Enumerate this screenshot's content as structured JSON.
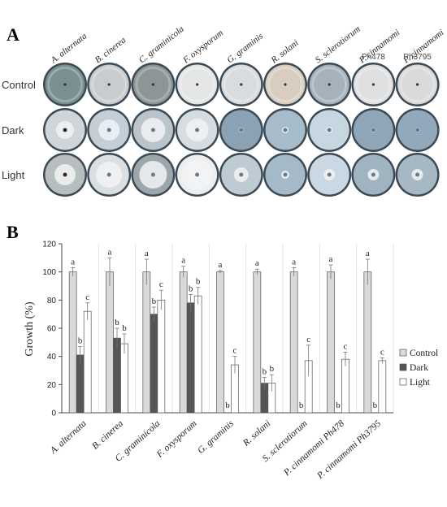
{
  "panel_a": {
    "letter": "A",
    "species": [
      "A. alternata",
      "B. cinerea",
      "C. graminicola",
      "F. oxysporum",
      "G. graminis",
      "R. solani",
      "S. sclerotiorum",
      "P. cinnamomi",
      "P. cinnamomi"
    ],
    "isolates": [
      "Ph478",
      "Ph3795"
    ],
    "rows": [
      "Control",
      "Dark",
      "Light"
    ],
    "plate_colors": {
      "control": [
        "#7a8f90",
        "#c9ccce",
        "#8d9597",
        "#e4e6e6",
        "#d8dcdf",
        "#d8cdc0",
        "#a6b2ba",
        "#e0e0e0",
        "#dadada"
      ],
      "dark": [
        "#cfd6da",
        "#c3ced6",
        "#b9c4cb",
        "#d5dde2",
        "#8aa2b4",
        "#a7bccb",
        "#c6d7e2",
        "#8fa6b7",
        "#93a9b9"
      ],
      "light": [
        "#b8bdbd",
        "#dadfe2",
        "#9ca7ab",
        "#eeeeee",
        "#bfcbd2",
        "#a4bac9",
        "#c9d8e2",
        "#9fb3c1",
        "#a6b8c4"
      ]
    }
  },
  "panel_b": {
    "letter": "B",
    "chart_data": {
      "type": "bar",
      "categories": [
        "A. alternata",
        "B. cinerea",
        "C. graminicola",
        "F. oxysporum",
        "G. graminis",
        "R. solani",
        "S. sclerotiorum",
        "P. cinnamomi Ph478",
        "P. cinnamomi Ph3795"
      ],
      "ylabel": "Growth (%)",
      "ylim": [
        0,
        120
      ],
      "yticks": [
        0,
        20,
        40,
        60,
        80,
        100,
        120
      ],
      "grid": true,
      "legend_position": "right",
      "series": [
        {
          "name": "Control",
          "color": "#d9d9d9",
          "values": [
            100,
            100,
            100,
            100,
            100,
            100,
            100,
            100,
            100
          ],
          "errors": [
            3,
            10,
            9,
            4,
            1,
            2,
            3,
            5,
            9
          ],
          "letters": [
            "a",
            "a",
            "a",
            "a",
            "a",
            "a",
            "a",
            "a",
            "a"
          ]
        },
        {
          "name": "Dark",
          "color": "#555555",
          "values": [
            41,
            53,
            70,
            78,
            0,
            21,
            0,
            0,
            0
          ],
          "errors": [
            6,
            7,
            5,
            6,
            0,
            4,
            0,
            0,
            0
          ],
          "letters": [
            "b",
            "b",
            "b",
            "b",
            "b",
            "b",
            "b",
            "b",
            "b"
          ]
        },
        {
          "name": "Light",
          "color": "#ffffff",
          "values": [
            72,
            49,
            80,
            83,
            34,
            21,
            37,
            38,
            37
          ],
          "errors": [
            6,
            7,
            7,
            6,
            6,
            6,
            11,
            5,
            2
          ],
          "letters": [
            "c",
            "b",
            "c",
            "b",
            "c",
            "b",
            "c",
            "c",
            "c"
          ]
        }
      ]
    }
  }
}
